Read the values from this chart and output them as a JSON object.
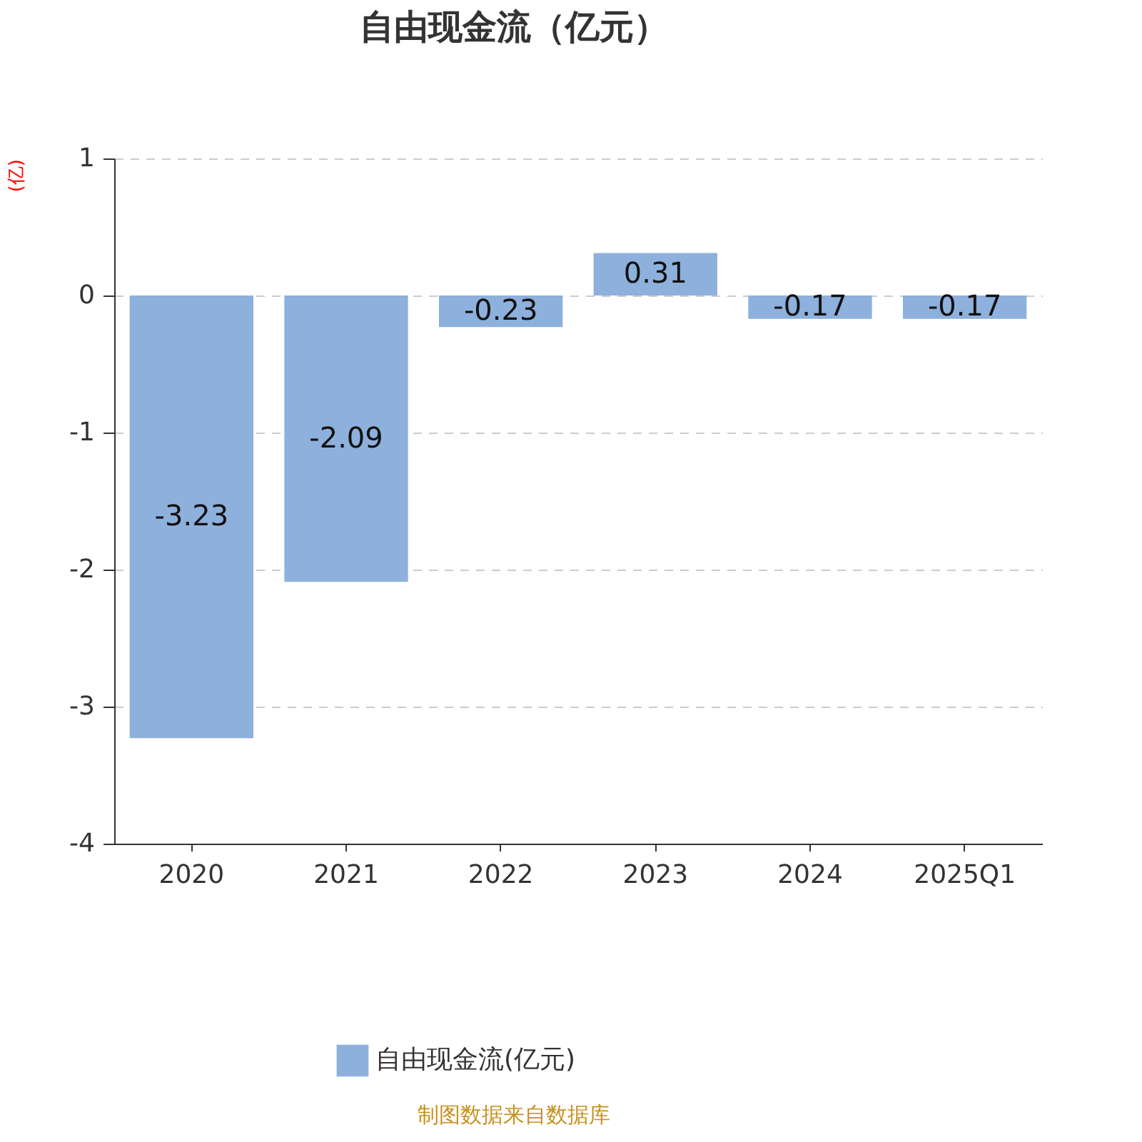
{
  "chart_data": {
    "type": "bar",
    "title": "自由现金流（亿元）",
    "ylabel": "(亿)",
    "categories": [
      "2020",
      "2021",
      "2022",
      "2023",
      "2024",
      "2025Q1"
    ],
    "series": [
      {
        "name": "自由现金流(亿元)",
        "color": "#8eb0dc",
        "values": [
          -3.23,
          -2.09,
          -0.23,
          0.31,
          -0.17,
          -0.17
        ]
      }
    ],
    "ylim": [
      -4,
      1
    ],
    "yticks": [
      -4,
      -3,
      -2,
      -1,
      0,
      1
    ],
    "grid": "y",
    "legend": "bottom",
    "data_labels": true,
    "annotations": [
      "制图数据来自数据库"
    ]
  }
}
